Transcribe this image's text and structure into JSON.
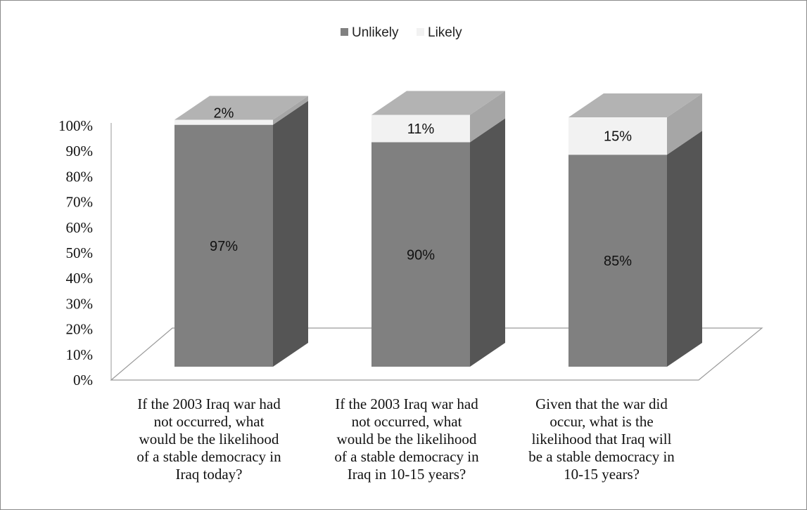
{
  "chart_data": {
    "type": "bar",
    "stacked": true,
    "three_d": true,
    "categories": [
      "If the 2003 Iraq war had not occurred, what would be the likelihood of a stable democracy in Iraq today?",
      "If the 2003 Iraq war had not occurred, what would be the likelihood of a stable democracy in Iraq in 10-15 years?",
      "Given that the war did occur, what is the likelihood that Iraq will be a stable democracy in 10-15 years?"
    ],
    "category_lines": [
      [
        "If the 2003 Iraq war had",
        "not occurred, what",
        "would be the likelihood",
        "of a stable democracy in",
        "Iraq today?"
      ],
      [
        "If the 2003 Iraq war had",
        "not occurred, what",
        "would be the likelihood",
        "of a stable democracy in",
        "Iraq in 10-15 years?"
      ],
      [
        "Given that the war did",
        "occur, what is the",
        "likelihood that Iraq will",
        "be a stable democracy in",
        "10-15 years?"
      ]
    ],
    "series": [
      {
        "name": "Unlikely",
        "values": [
          97,
          90,
          85
        ],
        "labels": [
          "97%",
          "90%",
          "85%"
        ],
        "color": "#808080"
      },
      {
        "name": "Likely",
        "values": [
          2,
          11,
          15
        ],
        "labels": [
          "2%",
          "11%",
          "15%"
        ],
        "color": "#f2f2f2"
      }
    ],
    "y_ticks": [
      "0%",
      "10%",
      "20%",
      "30%",
      "40%",
      "50%",
      "60%",
      "70%",
      "80%",
      "90%",
      "100%"
    ],
    "ylim": [
      0,
      100
    ],
    "legend_position": "top-center",
    "grid": false,
    "colors": {
      "top_face": "#b3b3b3",
      "unlikely_side": "#555555",
      "likely_side": "#a6a6a6",
      "floor_line": "#9a9a9a"
    }
  }
}
